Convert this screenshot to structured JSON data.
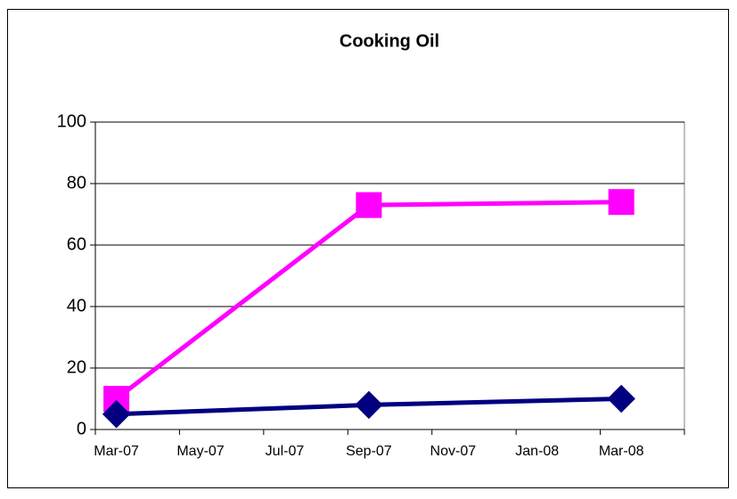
{
  "chart_data": {
    "type": "line",
    "title": "Cooking Oil",
    "x": [
      "Mar-07",
      "Sep-07",
      "Mar-08"
    ],
    "series": [
      {
        "color": "#ff00ff",
        "marker": "square",
        "values": [
          10,
          73,
          74
        ]
      },
      {
        "color": "#000080",
        "marker": "diamond",
        "values": [
          5,
          8,
          10
        ]
      }
    ],
    "xlim": [
      "Mar-07",
      "May-08"
    ],
    "xticks": [
      "Mar-07",
      "May-07",
      "Jul-07",
      "Sep-07",
      "Nov-07",
      "Jan-08",
      "Mar-08"
    ],
    "ylim": [
      0,
      100
    ],
    "yticks": [
      0,
      20,
      40,
      60,
      80,
      100
    ],
    "grid": true
  }
}
